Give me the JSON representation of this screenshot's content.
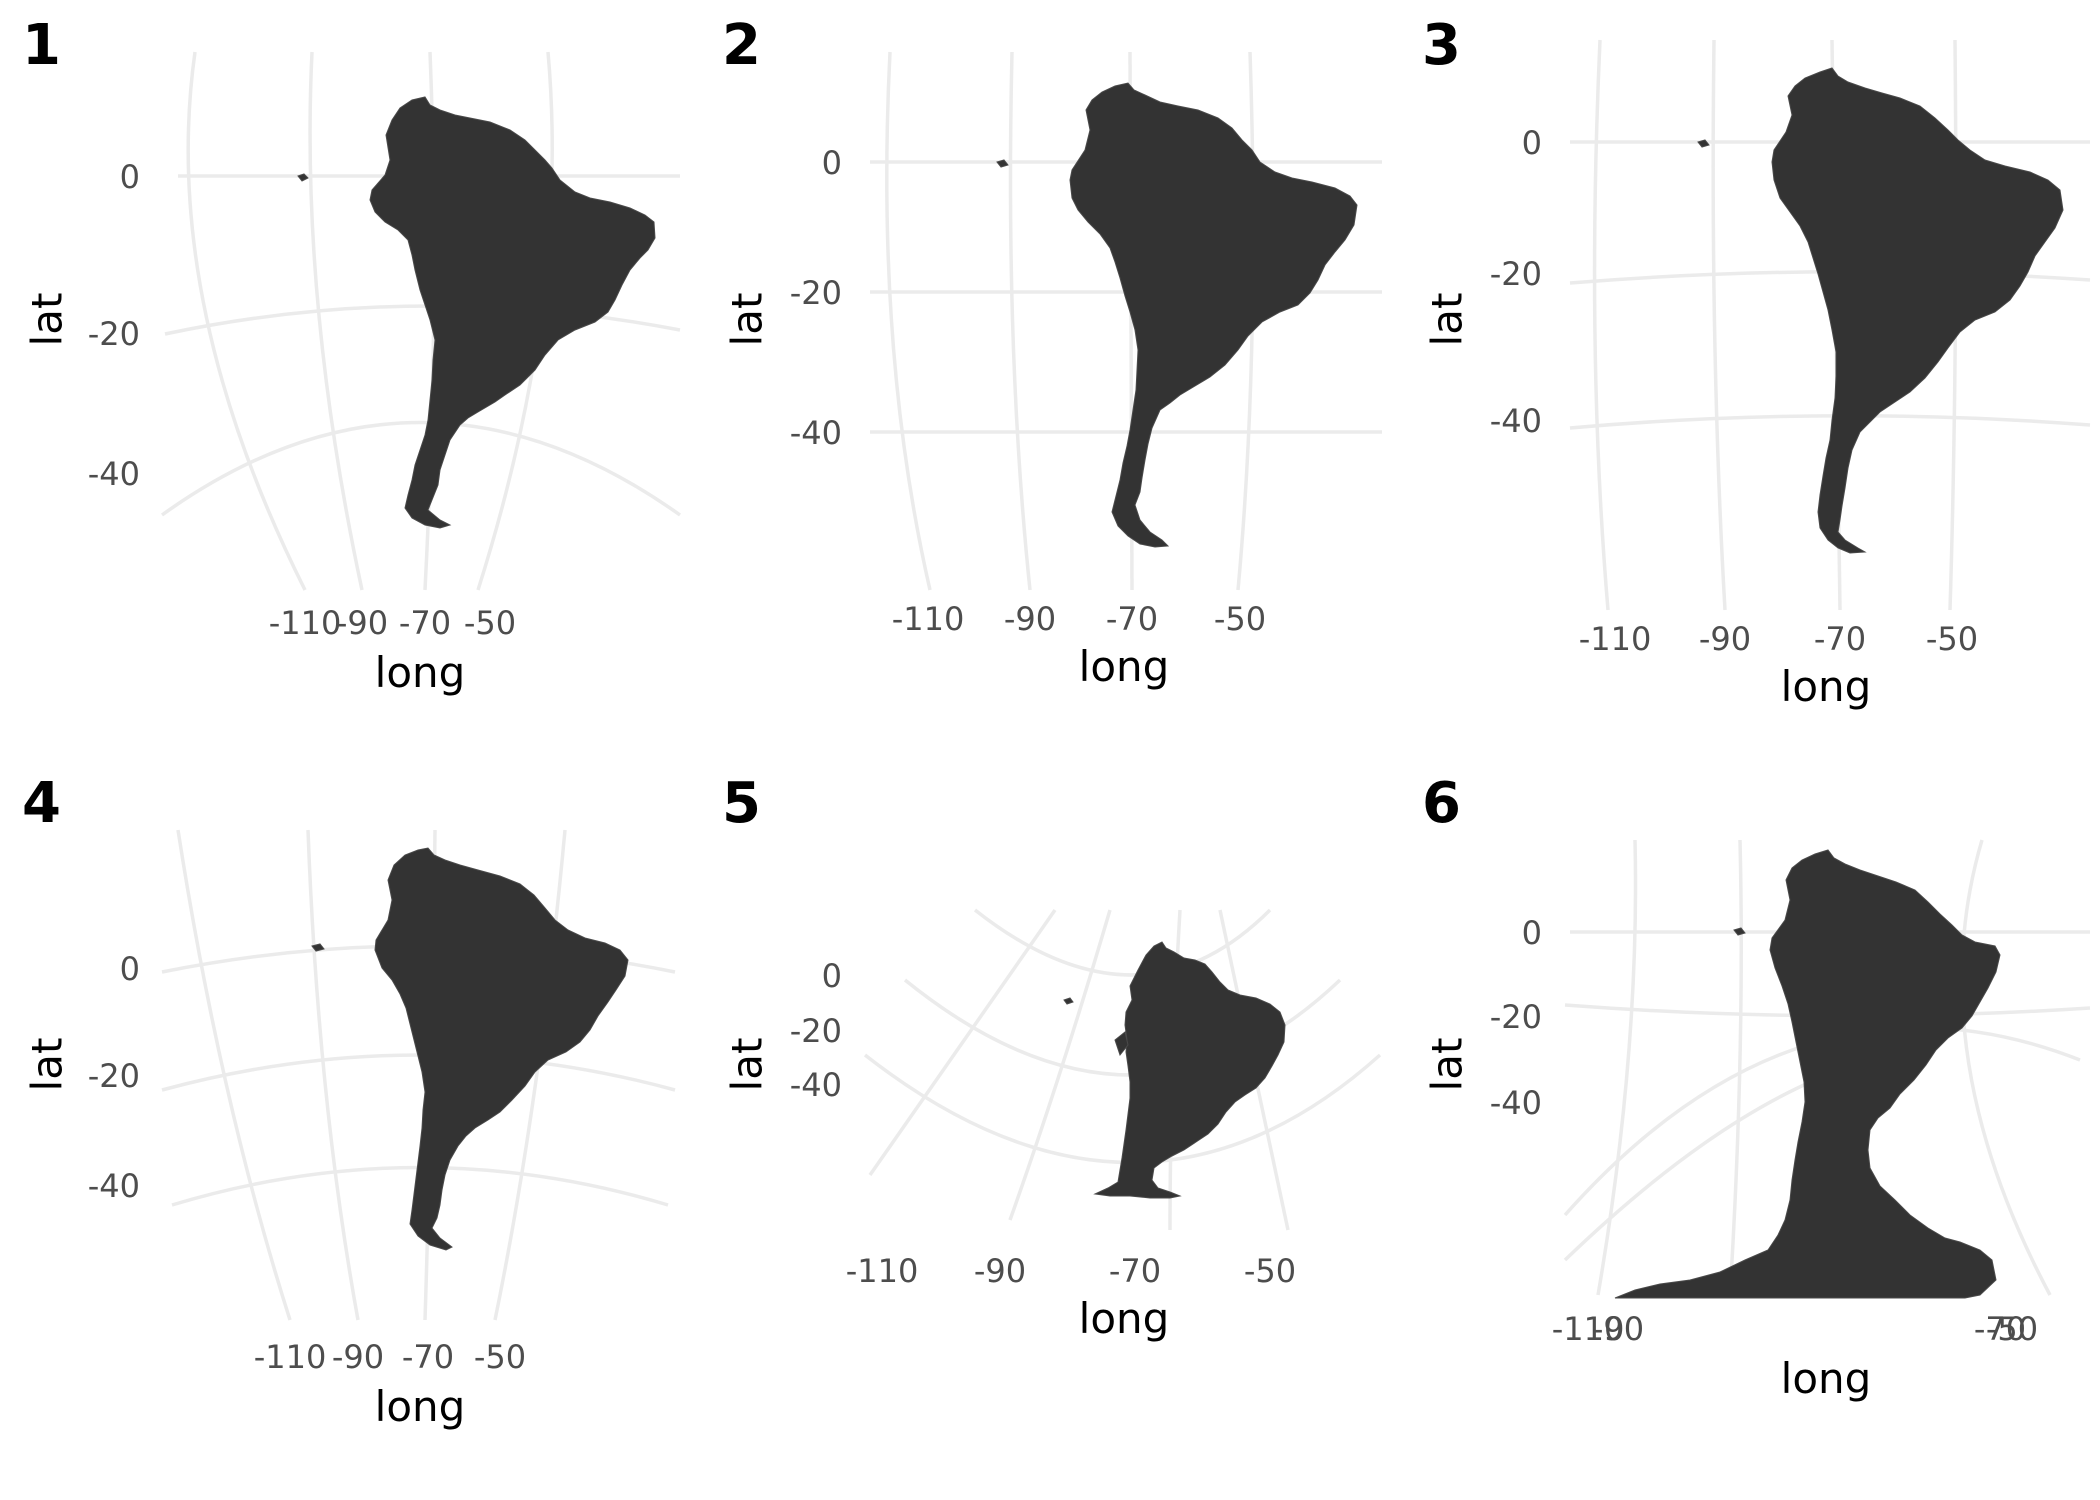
{
  "colors": {
    "land": "#333333",
    "grid": "#ebebeb",
    "tick_text": "#4d4d4d",
    "text": "#000000"
  },
  "chart_data": [
    {
      "type": "map",
      "tag": "1",
      "xlabel": "long",
      "ylabel": "lat",
      "x_ticks": [
        "-110",
        "-90",
        "-70",
        "-50"
      ],
      "y_ticks": [
        "0",
        "-20",
        "-40"
      ]
    },
    {
      "type": "map",
      "tag": "2",
      "xlabel": "long",
      "ylabel": "lat",
      "x_ticks": [
        "-110",
        "-90",
        "-70",
        "-50"
      ],
      "y_ticks": [
        "0",
        "-20",
        "-40"
      ]
    },
    {
      "type": "map",
      "tag": "3",
      "xlabel": "long",
      "ylabel": "lat",
      "x_ticks": [
        "-110",
        "-90",
        "-70",
        "-50"
      ],
      "y_ticks": [
        "0",
        "-20",
        "-40"
      ]
    },
    {
      "type": "map",
      "tag": "4",
      "xlabel": "long",
      "ylabel": "lat",
      "x_ticks": [
        "-110",
        "-90",
        "-70",
        "-50"
      ],
      "y_ticks": [
        "0",
        "-20",
        "-40"
      ]
    },
    {
      "type": "map",
      "tag": "5",
      "xlabel": "long",
      "ylabel": "lat",
      "x_ticks": [
        "-110",
        "-90",
        "-70",
        "-50"
      ],
      "y_ticks": [
        "0",
        "-20",
        "-40"
      ]
    },
    {
      "type": "map",
      "tag": "6",
      "xlabel": "long",
      "ylabel": "lat",
      "x_ticks": [
        "-110",
        "-90",
        "-70",
        "-50"
      ],
      "y_ticks": [
        "0",
        "-20",
        "-40"
      ]
    }
  ]
}
